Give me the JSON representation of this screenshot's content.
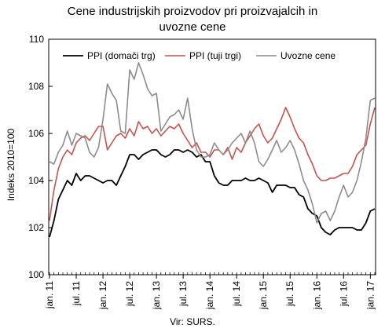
{
  "chart_data": {
    "type": "line",
    "title_line1": "Cene industrijskih proizvodov pri proizvajalcih in",
    "title_line2": "uvozne cene",
    "ylabel": "Indeks 2010=100",
    "xlabel": "Vir: SURS.",
    "ylim": [
      100,
      110
    ],
    "yticks": [
      100,
      102,
      104,
      106,
      108,
      110
    ],
    "grid": false,
    "legend_position": "top",
    "x_start_index": 0,
    "x_ticks": [
      {
        "label": "jan. 11",
        "index": 0
      },
      {
        "label": "jul. 11",
        "index": 6
      },
      {
        "label": "jan. 12",
        "index": 12
      },
      {
        "label": "jul. 12",
        "index": 18
      },
      {
        "label": "jan. 13",
        "index": 24
      },
      {
        "label": "jul. 13",
        "index": 30
      },
      {
        "label": "jan. 14",
        "index": 36
      },
      {
        "label": "jul. 14",
        "index": 42
      },
      {
        "label": "jan. 15",
        "index": 48
      },
      {
        "label": "jul. 15",
        "index": 54
      },
      {
        "label": "jan. 16",
        "index": 60
      },
      {
        "label": "jul. 16",
        "index": 66
      },
      {
        "label": "jan. 17",
        "index": 72
      }
    ],
    "series": [
      {
        "name": "PPI (domači trg)",
        "color": "#000000",
        "values": [
          101.6,
          102.3,
          103.2,
          103.6,
          104.0,
          103.8,
          104.3,
          104.0,
          104.2,
          104.2,
          104.1,
          104.0,
          103.9,
          104.0,
          104.0,
          103.8,
          104.2,
          104.6,
          105.1,
          105.1,
          104.9,
          105.1,
          105.2,
          105.3,
          105.3,
          105.1,
          105.0,
          105.1,
          105.3,
          105.3,
          105.2,
          105.3,
          105.2,
          105.0,
          105.1,
          104.8,
          104.8,
          104.2,
          103.9,
          103.8,
          103.8,
          104.0,
          104.0,
          104.0,
          104.1,
          104.0,
          104.0,
          104.1,
          104.0,
          103.9,
          103.5,
          103.8,
          103.8,
          103.8,
          103.7,
          103.7,
          103.4,
          103.3,
          102.8,
          102.6,
          102.5,
          102.0,
          101.8,
          101.7,
          101.9,
          102.0,
          102.0,
          102.0,
          102.0,
          101.9,
          101.9,
          102.2,
          102.7,
          102.8
        ]
      },
      {
        "name": "PPI (tuji trgi)",
        "color": "#c8504a",
        "values": [
          102.3,
          103.6,
          104.5,
          105.0,
          105.3,
          105.1,
          105.6,
          105.8,
          105.9,
          105.7,
          106.0,
          106.3,
          106.3,
          105.3,
          105.6,
          105.9,
          106.0,
          105.8,
          106.2,
          105.9,
          106.5,
          106.2,
          106.3,
          106.0,
          106.2,
          105.9,
          106.1,
          106.3,
          106.2,
          106.4,
          106.0,
          105.7,
          105.4,
          105.6,
          105.2,
          105.2,
          105.0,
          105.3,
          105.3,
          105.1,
          105.4,
          104.9,
          105.4,
          105.2,
          105.6,
          105.9,
          106.2,
          106.4,
          105.9,
          105.6,
          105.8,
          106.2,
          106.6,
          107.1,
          106.7,
          106.2,
          105.8,
          105.6,
          105.1,
          104.7,
          104.2,
          104.0,
          104.0,
          104.1,
          104.1,
          104.2,
          104.3,
          104.3,
          104.6,
          105.1,
          105.3,
          105.5,
          106.4,
          107.1
        ]
      },
      {
        "name": "Uvozne cene",
        "color": "#8c8c8c",
        "values": [
          104.8,
          104.7,
          105.2,
          105.5,
          106.1,
          105.5,
          106.0,
          105.9,
          105.8,
          105.2,
          105.0,
          105.4,
          106.6,
          108.1,
          107.7,
          107.4,
          106.1,
          106.0,
          108.7,
          108.3,
          109.0,
          108.5,
          107.9,
          107.6,
          107.7,
          106.1,
          106.4,
          106.7,
          106.8,
          107.0,
          106.6,
          107.5,
          106.2,
          105.3,
          105.0,
          105.0,
          105.1,
          105.6,
          105.3,
          105.1,
          105.3,
          105.6,
          105.8,
          106.0,
          105.6,
          106.1,
          105.6,
          104.8,
          104.6,
          104.9,
          105.3,
          105.7,
          105.2,
          105.4,
          105.7,
          105.3,
          104.7,
          104.0,
          103.6,
          103.0,
          102.2,
          102.6,
          102.7,
          102.3,
          102.7,
          103.3,
          103.8,
          103.3,
          103.5,
          104.0,
          104.8,
          105.8,
          107.4,
          107.5
        ]
      }
    ]
  }
}
